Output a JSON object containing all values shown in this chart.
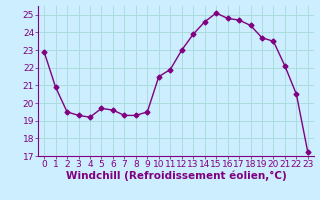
{
  "x": [
    0,
    1,
    2,
    3,
    4,
    5,
    6,
    7,
    8,
    9,
    10,
    11,
    12,
    13,
    14,
    15,
    16,
    17,
    18,
    19,
    20,
    21,
    22,
    23
  ],
  "y": [
    22.9,
    20.9,
    19.5,
    19.3,
    19.2,
    19.7,
    19.6,
    19.3,
    19.3,
    19.5,
    21.5,
    21.9,
    23.0,
    23.9,
    24.6,
    25.1,
    24.8,
    24.7,
    24.4,
    23.7,
    23.5,
    22.1,
    20.5,
    17.2
  ],
  "line_color": "#800080",
  "marker": "D",
  "marker_size": 2.5,
  "bg_color": "#cceeff",
  "grid_color": "#aadddd",
  "xlabel": "Windchill (Refroidissement éolien,°C)",
  "ylim": [
    17,
    25.5
  ],
  "xlim": [
    -0.5,
    23.5
  ],
  "yticks": [
    17,
    18,
    19,
    20,
    21,
    22,
    23,
    24,
    25
  ],
  "xticks": [
    0,
    1,
    2,
    3,
    4,
    5,
    6,
    7,
    8,
    9,
    10,
    11,
    12,
    13,
    14,
    15,
    16,
    17,
    18,
    19,
    20,
    21,
    22,
    23
  ],
  "tick_fontsize": 6.5,
  "xlabel_fontsize": 7.5
}
